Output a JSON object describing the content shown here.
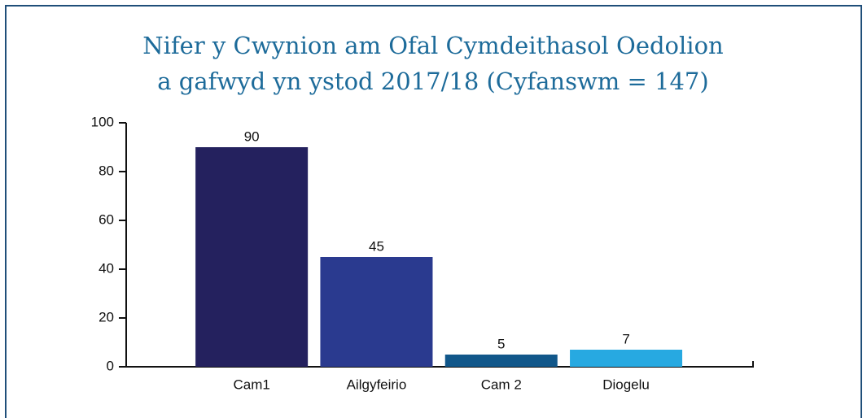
{
  "chart_data": {
    "type": "bar",
    "title": [
      "Nifer y Cwynion am Ofal Cymdeithasol Oedolion",
      "a gafwyd yn ystod 2017/18 (Cyfanswm = 147)"
    ],
    "categories": [
      "Cam1",
      "Ailgyfeirio",
      "Cam 2",
      "Diogelu"
    ],
    "values": [
      90,
      45,
      5,
      7
    ],
    "colors": [
      "#24215e",
      "#2a3a8f",
      "#11578a",
      "#27a9e1"
    ],
    "ylim": [
      0,
      100
    ],
    "yticks": [
      0,
      20,
      40,
      60,
      80,
      100
    ],
    "grid": false
  }
}
